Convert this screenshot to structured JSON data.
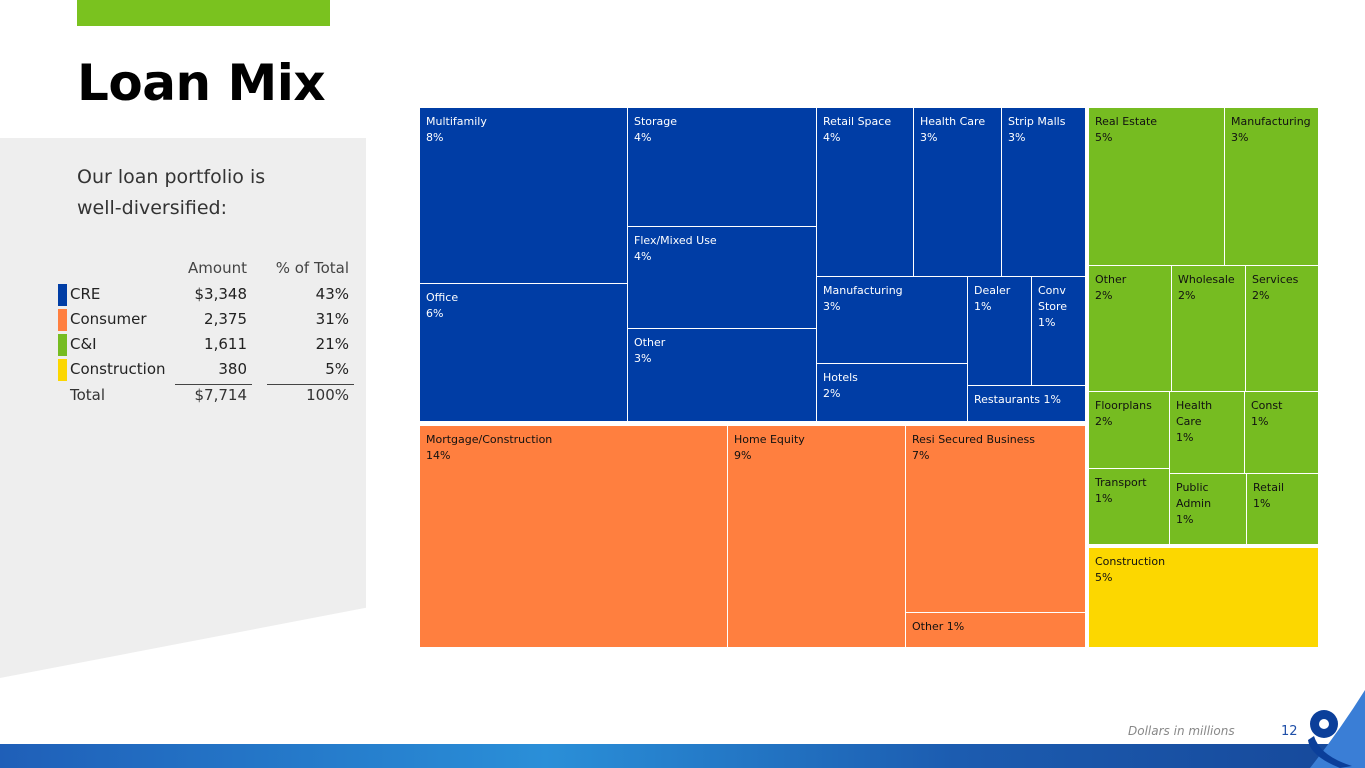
{
  "title": "Loan Mix",
  "intro": "Our loan portfolio is well-diversified:",
  "table": {
    "headers": {
      "amount": "Amount",
      "pct": "% of Total"
    },
    "rows": [
      {
        "category": "CRE",
        "amount": "$3,348",
        "pct": "43%",
        "color": "#003da5"
      },
      {
        "category": "Consumer",
        "amount": "2,375",
        "pct": "31%",
        "color": "#ff7f3f"
      },
      {
        "category": "C&I",
        "amount": "1,611",
        "pct": "21%",
        "color": "#76bc21"
      },
      {
        "category": "Construction",
        "amount": "380",
        "pct": "5%",
        "color": "#fcd700"
      }
    ],
    "total": {
      "category": "Total",
      "amount": "$7,714",
      "pct": "100%"
    }
  },
  "chart_data": {
    "type": "treemap",
    "groups": [
      {
        "name": "CRE",
        "color": "#003da5",
        "text_color": "#ffffff",
        "items": [
          {
            "name": "Multifamily",
            "value": "8%"
          },
          {
            "name": "Office",
            "value": "6%"
          },
          {
            "name": "Storage",
            "value": "4%"
          },
          {
            "name": "Flex/Mixed Use",
            "value": "4%"
          },
          {
            "name": "Other",
            "value": "3%"
          },
          {
            "name": "Retail Space",
            "value": "4%"
          },
          {
            "name": "Health Care",
            "value": "3%"
          },
          {
            "name": "Strip Malls",
            "value": "3%"
          },
          {
            "name": "Manufacturing",
            "value": "3%"
          },
          {
            "name": "Dealer",
            "value": "1%"
          },
          {
            "name": "Conv Store",
            "value": "1%"
          },
          {
            "name": "Hotels",
            "value": "2%"
          },
          {
            "name": "Restaurants",
            "value": "1%"
          }
        ]
      },
      {
        "name": "Consumer",
        "color": "#ff7f3f",
        "text_color": "#111111",
        "items": [
          {
            "name": "Mortgage/Construction",
            "value": "14%"
          },
          {
            "name": "Home Equity",
            "value": "9%"
          },
          {
            "name": "Resi Secured Business",
            "value": "7%"
          },
          {
            "name": "Other",
            "value": "1%"
          }
        ]
      },
      {
        "name": "C&I",
        "color": "#76bc21",
        "text_color": "#111111",
        "items": [
          {
            "name": "Real Estate",
            "value": "5%"
          },
          {
            "name": "Manufacturing",
            "value": "3%"
          },
          {
            "name": "Other",
            "value": "2%"
          },
          {
            "name": "Wholesale",
            "value": "2%"
          },
          {
            "name": "Services",
            "value": "2%"
          },
          {
            "name": "Floorplans",
            "value": "2%"
          },
          {
            "name": "Health Care",
            "value": "1%"
          },
          {
            "name": "Const",
            "value": "1%"
          },
          {
            "name": "Transport",
            "value": "1%"
          },
          {
            "name": "Public Admin",
            "value": "1%"
          },
          {
            "name": "Retail",
            "value": "1%"
          }
        ]
      },
      {
        "name": "Construction",
        "color": "#fcd700",
        "text_color": "#111111",
        "items": [
          {
            "name": "Construction",
            "value": "5%"
          }
        ]
      }
    ]
  },
  "footnote": "Dollars in millions",
  "page_number": "12"
}
